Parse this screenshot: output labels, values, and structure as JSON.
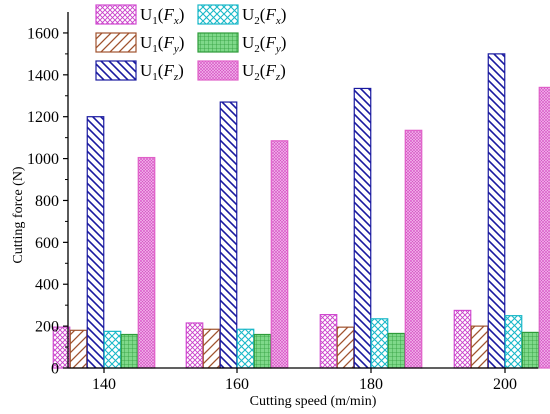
{
  "chart_data": {
    "type": "bar",
    "xlabel": "Cutting speed (m/min)",
    "ylabel": "Cutting force (N)",
    "categories": [
      "140",
      "160",
      "180",
      "200"
    ],
    "ylim": [
      0,
      1700
    ],
    "yticks": [
      0,
      200,
      400,
      600,
      800,
      1000,
      1200,
      1400,
      1600
    ],
    "grid": false,
    "legend_position": "top-left",
    "series": [
      {
        "name": "U1(Fx)",
        "base": "U",
        "sub": "1",
        "force": "F",
        "force_sub": "x",
        "color": "#d04ad0",
        "pattern": "crosshatch-fine",
        "values": [
          195,
          215,
          255,
          275
        ]
      },
      {
        "name": "U1(Fy)",
        "base": "U",
        "sub": "1",
        "force": "F",
        "force_sub": "y",
        "color": "#a0522d",
        "pattern": "diag-sparse",
        "values": [
          180,
          185,
          195,
          200
        ]
      },
      {
        "name": "U1(Fz)",
        "base": "U",
        "sub": "1",
        "force": "F",
        "force_sub": "z",
        "color": "#1a1aa0",
        "pattern": "diag-dense",
        "values": [
          1200,
          1270,
          1335,
          1500
        ]
      },
      {
        "name": "U2(Fx)",
        "base": "U",
        "sub": "2",
        "force": "F",
        "force_sub": "x",
        "color": "#19b8c8",
        "pattern": "crosshatch-coarse",
        "values": [
          175,
          185,
          235,
          250
        ]
      },
      {
        "name": "U2(Fy)",
        "base": "U",
        "sub": "2",
        "force": "F",
        "force_sub": "y",
        "color": "#2e9b3a",
        "pattern": "grid-green",
        "values": [
          160,
          160,
          165,
          170
        ]
      },
      {
        "name": "U2(Fz)",
        "base": "U",
        "sub": "2",
        "force": "F",
        "force_sub": "z",
        "color": "#e060c8",
        "pattern": "fine-pink",
        "values": [
          1005,
          1085,
          1135,
          1340
        ]
      }
    ],
    "legend_order": [
      0,
      3,
      1,
      4,
      2,
      5
    ]
  }
}
